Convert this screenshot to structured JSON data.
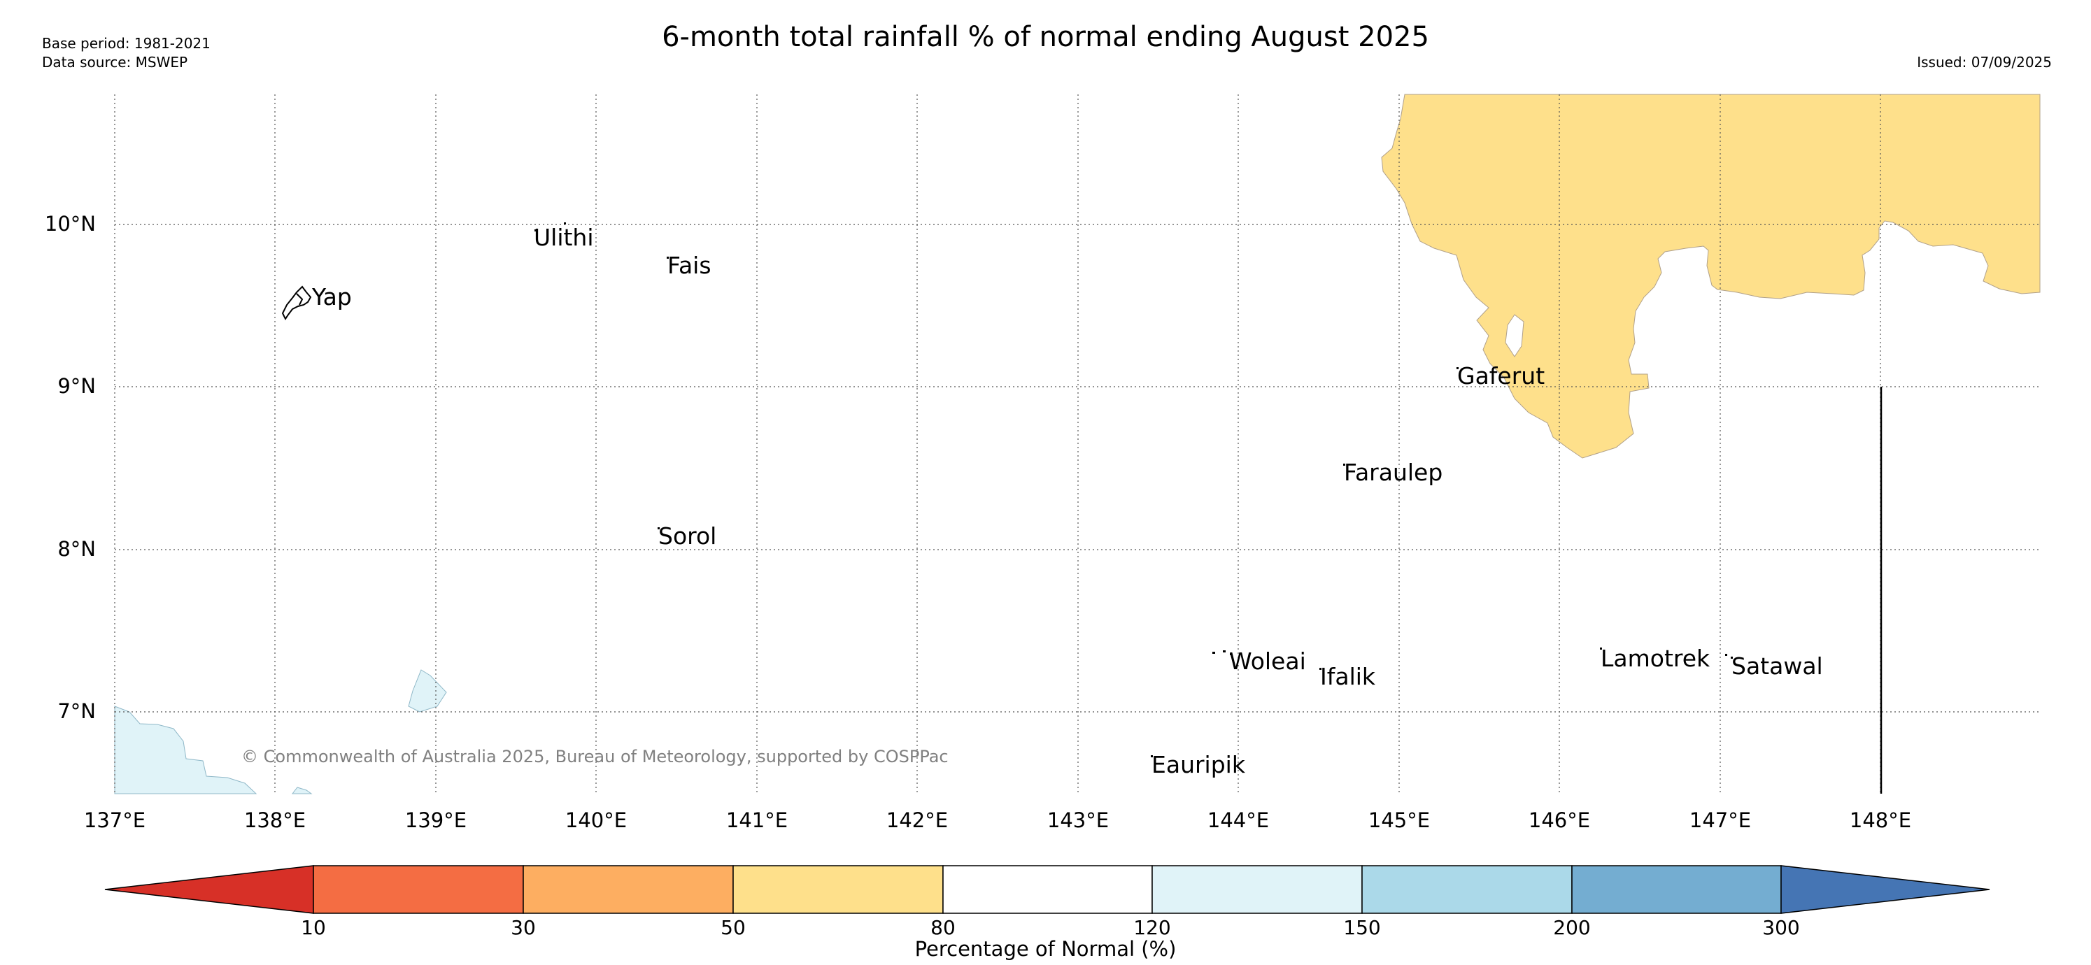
{
  "header": {
    "title": "6-month total rainfall % of normal ending August 2025",
    "base_period": "Base period: 1981-2021",
    "data_source": "Data source: MSWEP",
    "issued": "Issued: 07/09/2025"
  },
  "map": {
    "latitude_labels": [
      "10°N",
      "9°N",
      "8°N",
      "7°N"
    ],
    "longitude_labels": [
      "137°E",
      "138°E",
      "139°E",
      "140°E",
      "141°E",
      "142°E",
      "143°E",
      "144°E",
      "145°E",
      "146°E",
      "147°E",
      "148°E"
    ],
    "places": [
      "Yap",
      "Ulithi",
      "Fais",
      "Gaferut",
      "Faraulep",
      "Sorol",
      "Woleai",
      "Ifalik",
      "Lamotrek",
      "Satawal",
      "Eauripik"
    ],
    "copyright": "© Commonwealth of Australia 2025, Bureau of Meteorology, supported by COSPPac",
    "region_colors": {
      "50-80": "#fee08b",
      "120-150": "#e0f3f8"
    }
  },
  "colorbar": {
    "label": "Percentage of Normal (%)",
    "ticks": [
      "10",
      "30",
      "50",
      "80",
      "120",
      "150",
      "200",
      "300"
    ],
    "colors": [
      "#d73027",
      "#f46d43",
      "#fdae61",
      "#fee08b",
      "#ffffff",
      "#e0f3f8",
      "#abd9e9",
      "#74add1",
      "#4575b4"
    ]
  }
}
